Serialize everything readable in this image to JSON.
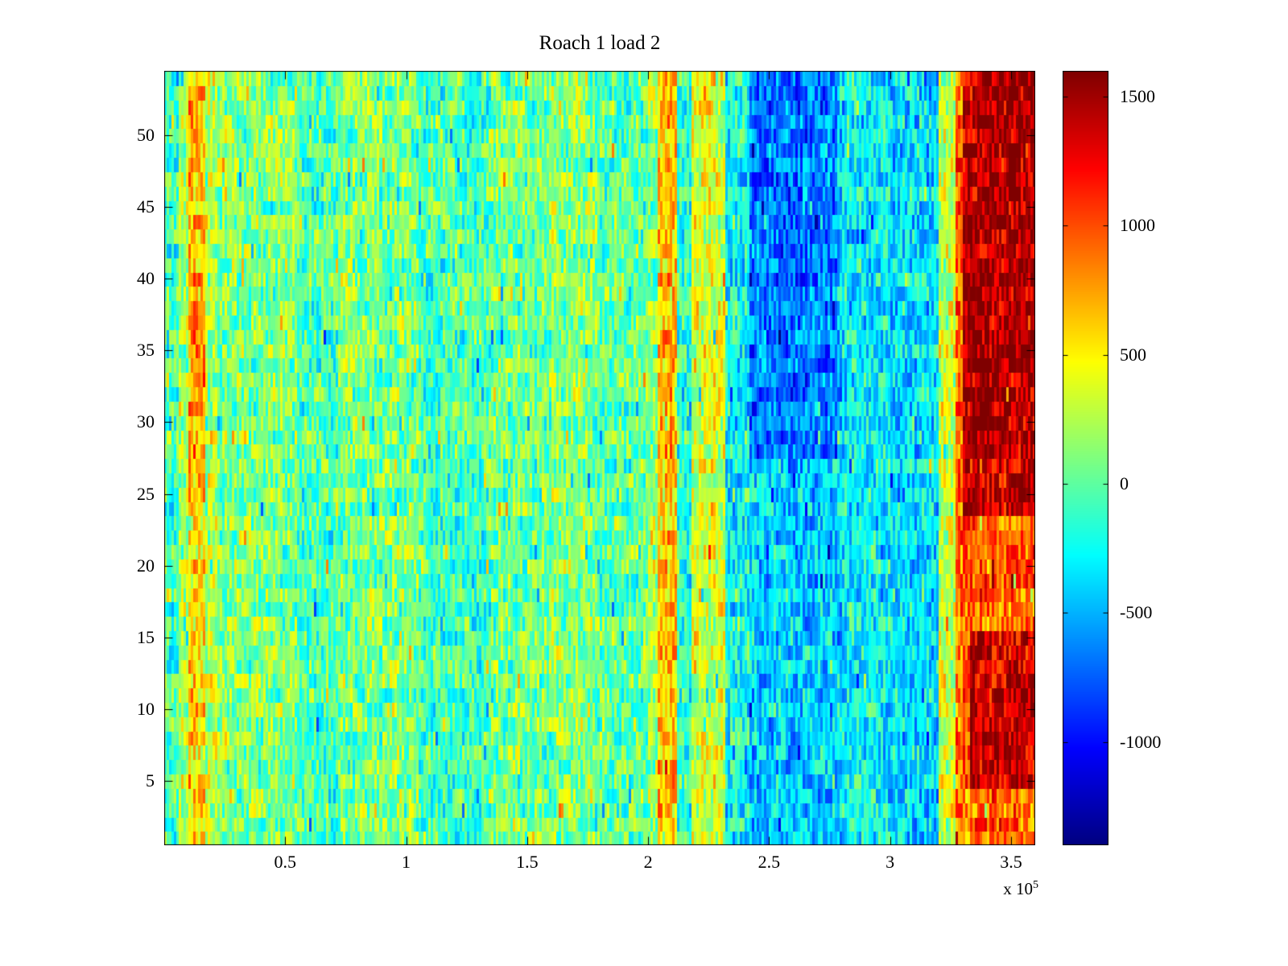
{
  "title": "Roach 1 load 2",
  "labels": {
    "exponent_prefix": "x 10",
    "exponent_power": "5"
  },
  "chart_data": {
    "type": "heatmap",
    "title": "Roach 1 load 2",
    "colormap": "jet",
    "x_axis": {
      "range_units": [
        0,
        3.6
      ],
      "unit_scale": "1e5",
      "ticks": [
        0.5,
        1,
        1.5,
        2,
        2.5,
        3,
        3.5
      ],
      "tick_labels": [
        "0.5",
        "1",
        "1.5",
        "2",
        "2.5",
        "3",
        "3.5"
      ],
      "exponent_label": "x 10^5"
    },
    "y_axis": {
      "range": [
        0.5,
        54.5
      ],
      "ticks": [
        5,
        10,
        15,
        20,
        25,
        30,
        35,
        40,
        45,
        50
      ],
      "tick_labels": [
        "5",
        "10",
        "15",
        "20",
        "25",
        "30",
        "35",
        "40",
        "45",
        "50"
      ]
    },
    "colorbar": {
      "clim": [
        -1400,
        1600
      ],
      "ticks": [
        1500,
        1000,
        500,
        0,
        -500,
        -1000
      ],
      "tick_labels": [
        "1500",
        "1000",
        "500",
        "0",
        "-500",
        "-1000"
      ],
      "position": "right"
    },
    "grid": {
      "rows": 54,
      "cols": 360
    },
    "noise_amplitude": 330,
    "row_streak_amplitude": 170,
    "speckle_probability": 0.06,
    "speckle_amplitude": 500,
    "seed": 1337,
    "column_bands": [
      [
        0.0,
        0.06,
        -60
      ],
      [
        0.06,
        0.1,
        250
      ],
      [
        0.1,
        0.17,
        560
      ],
      [
        0.17,
        0.22,
        260
      ],
      [
        0.22,
        0.55,
        100
      ],
      [
        0.55,
        0.72,
        -60
      ],
      [
        0.72,
        1.05,
        80
      ],
      [
        1.05,
        1.35,
        -60
      ],
      [
        1.35,
        1.6,
        60
      ],
      [
        1.6,
        1.78,
        130
      ],
      [
        1.78,
        2.0,
        30
      ],
      [
        2.0,
        2.04,
        160
      ],
      [
        2.04,
        2.12,
        660
      ],
      [
        2.12,
        2.18,
        -150
      ],
      [
        2.18,
        2.32,
        360
      ],
      [
        2.32,
        2.42,
        -260
      ],
      [
        2.42,
        2.8,
        -420
      ],
      [
        2.8,
        3.0,
        -300
      ],
      [
        3.0,
        3.2,
        -350
      ],
      [
        3.2,
        3.27,
        320
      ],
      [
        3.27,
        3.6,
        950
      ]
    ],
    "row_band_modifiers": [
      {
        "x0": 3.3,
        "x1": 3.6,
        "r0": 24,
        "r1": 54,
        "offset": 520
      },
      {
        "x0": 3.33,
        "x1": 3.6,
        "r0": 5,
        "r1": 15,
        "offset": 430
      },
      {
        "x0": 2.42,
        "x1": 2.78,
        "r0": 28,
        "r1": 54,
        "offset": -260
      },
      {
        "x0": 0.1,
        "x1": 0.17,
        "r0": 25,
        "r1": 54,
        "offset": 180
      }
    ]
  }
}
